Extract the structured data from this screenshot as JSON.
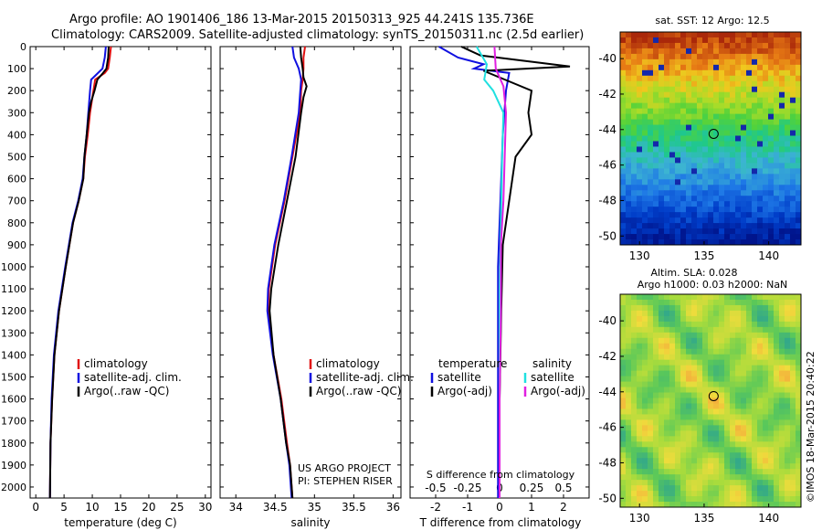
{
  "header": {
    "line1": "Argo profile: AO 1901406_186 13-Mar-2015 20150313_925 44.241S 135.736E",
    "line2": "Climatology: CARS2009. Satellite-adjusted climatology: synTS_20150311.nc (2.5d earlier)"
  },
  "colors": {
    "climatology": "#e01010",
    "satellite": "#1010e0",
    "argo": "#000000",
    "sat_salinity": "#20e0e0",
    "argo_salinity": "#e020e0"
  },
  "chart_data": [
    {
      "id": "temperature",
      "type": "line",
      "xlabel": "temperature (deg C)",
      "xlim": [
        -1,
        31
      ],
      "xticks": [
        0,
        5,
        10,
        15,
        20,
        25,
        30
      ],
      "ylim": [
        0,
        2050
      ],
      "yticks": [
        0,
        100,
        200,
        300,
        400,
        500,
        600,
        700,
        800,
        900,
        1000,
        1100,
        1200,
        1300,
        1400,
        1500,
        1600,
        1700,
        1800,
        1900,
        2000
      ],
      "y_reversed": true,
      "legend": [
        "climatology",
        "satellite-adj. clim.",
        "Argo(..raw -QC)"
      ],
      "series": [
        {
          "name": "climatology",
          "color": "#e01010",
          "x": [
            13.3,
            13.1,
            12.8,
            12.2,
            10.5,
            10.2,
            9.6,
            9.2,
            8.7,
            8.4,
            7.6,
            6.6,
            5.3,
            4.1,
            3.3,
            2.9,
            2.6,
            2.5
          ],
          "y": [
            0,
            50,
            100,
            120,
            150,
            200,
            300,
            400,
            500,
            600,
            700,
            800,
            1000,
            1200,
            1400,
            1600,
            1800,
            2050
          ]
        },
        {
          "name": "satellite-adj. clim.",
          "color": "#1010e0",
          "x": [
            12.4,
            12.2,
            11.8,
            11.0,
            9.8,
            9.6,
            9.3,
            9.0,
            8.6,
            8.3,
            7.5,
            6.5,
            5.2,
            4.0,
            3.2,
            2.8,
            2.6,
            2.5
          ],
          "y": [
            0,
            50,
            100,
            120,
            150,
            200,
            300,
            400,
            500,
            600,
            700,
            800,
            1000,
            1200,
            1400,
            1600,
            1800,
            2050
          ]
        },
        {
          "name": "Argo(..raw -QC)",
          "color": "#000000",
          "x": [
            12.9,
            12.8,
            12.5,
            11.9,
            10.9,
            10.4,
            9.8,
            9.4,
            9.0,
            8.6,
            8.4,
            7.6,
            6.6,
            5.3,
            4.1,
            3.3,
            2.9,
            2.6,
            2.5
          ],
          "y": [
            0,
            50,
            100,
            120,
            150,
            200,
            250,
            300,
            400,
            500,
            600,
            700,
            800,
            1000,
            1200,
            1400,
            1600,
            1800,
            2050
          ]
        }
      ]
    },
    {
      "id": "salinity",
      "type": "line",
      "xlabel": "salinity",
      "xlim": [
        33.8,
        36.1
      ],
      "xticks": [
        34,
        34.5,
        35,
        35.5,
        36
      ],
      "ylim": [
        0,
        2050
      ],
      "y_reversed": true,
      "legend": [
        "climatology",
        "satellite-adj. clim.",
        "Argo(..raw -QC)"
      ],
      "annotation": [
        "US ARGO PROJECT",
        "PI: STEPHEN RISER"
      ],
      "series": [
        {
          "name": "climatology",
          "color": "#e01010",
          "x": [
            34.88,
            34.86,
            34.86,
            34.85,
            34.83,
            34.82,
            34.72,
            34.62,
            34.5,
            34.42,
            34.41,
            34.48,
            34.58,
            34.65,
            34.69,
            34.72
          ],
          "y": [
            0,
            50,
            100,
            150,
            200,
            300,
            500,
            700,
            900,
            1100,
            1200,
            1400,
            1600,
            1800,
            1900,
            2050
          ]
        },
        {
          "name": "satellite-adj. clim.",
          "color": "#1010e0",
          "x": [
            34.72,
            34.74,
            34.8,
            34.83,
            34.82,
            34.8,
            34.71,
            34.61,
            34.49,
            34.41,
            34.4,
            34.47,
            34.57,
            34.64,
            34.68,
            34.71
          ],
          "y": [
            0,
            50,
            100,
            150,
            200,
            300,
            500,
            700,
            900,
            1100,
            1200,
            1400,
            1600,
            1800,
            1900,
            2050
          ]
        },
        {
          "name": "Argo(..raw -QC)",
          "color": "#000000",
          "x": [
            34.82,
            34.83,
            34.85,
            34.86,
            34.9,
            34.86,
            34.83,
            34.76,
            34.65,
            34.54,
            34.45,
            34.43,
            34.48,
            34.57,
            34.64,
            34.69,
            34.72
          ],
          "y": [
            0,
            50,
            100,
            140,
            180,
            230,
            300,
            500,
            700,
            900,
            1100,
            1200,
            1400,
            1600,
            1800,
            1900,
            2050
          ]
        }
      ]
    },
    {
      "id": "difference",
      "type": "line",
      "xlabel": "T difference from climatology",
      "top_label": "S difference from climatology",
      "xlim": [
        -2.8,
        2.8
      ],
      "xticks": [
        -2,
        -1,
        0,
        1,
        2
      ],
      "s_ticks": [
        -0.5,
        -0.25,
        0,
        0.25,
        0.5
      ],
      "s_tick_labels": [
        "-0.5",
        "-0.25",
        "0",
        "0.25",
        "0.5"
      ],
      "ylim": [
        0,
        2050
      ],
      "y_reversed": true,
      "legend_titles": [
        "temperature",
        "salinity"
      ],
      "legend": [
        "satellite",
        "Argo(-adj)",
        "satellite",
        "Argo(-adj)"
      ],
      "series": [
        {
          "name": "satellite",
          "group": "temperature",
          "color": "#1010e0",
          "x": [
            -1.9,
            -1.3,
            -0.5,
            -0.8,
            0.3,
            0.2,
            0.1,
            0.05,
            0.0,
            -0.05,
            -0.05,
            -0.05,
            -0.05
          ],
          "y": [
            0,
            50,
            80,
            100,
            120,
            200,
            400,
            600,
            800,
            1000,
            1400,
            1800,
            2050
          ]
        },
        {
          "name": "Argo(-adj)",
          "group": "temperature",
          "color": "#000000",
          "x": [
            -1.2,
            -0.6,
            2.2,
            -0.5,
            1.0,
            0.9,
            1.0,
            0.5,
            0.3,
            0.1,
            0.05,
            0.0,
            0.0
          ],
          "y": [
            0,
            40,
            90,
            110,
            200,
            300,
            400,
            500,
            700,
            900,
            1200,
            1600,
            2050
          ]
        },
        {
          "name": "satellite",
          "group": "salinity",
          "color": "#20e0e0",
          "x": [
            -0.18,
            -0.1,
            -0.12,
            -0.05,
            0.03,
            0.02,
            0.01,
            0.0,
            0.0,
            0.0,
            0.0
          ],
          "y": [
            0,
            80,
            150,
            200,
            300,
            500,
            800,
            1100,
            1400,
            1800,
            2050
          ]
        },
        {
          "name": "Argo(-adj)",
          "group": "salinity",
          "color": "#e020e0",
          "x": [
            -0.04,
            -0.03,
            0.03,
            0.05,
            0.04,
            0.03,
            0.01,
            0.01,
            0.0,
            0.0
          ],
          "y": [
            0,
            100,
            180,
            300,
            500,
            700,
            900,
            1200,
            1600,
            2050
          ]
        }
      ]
    },
    {
      "id": "sst_map",
      "type": "heatmap",
      "title": "sat. SST: 12 Argo: 12.5",
      "xlim": [
        128.5,
        142.5
      ],
      "ylim": [
        -50.5,
        -38.5
      ],
      "xticks": [
        130,
        135,
        140
      ],
      "yticks": [
        -40,
        -42,
        -44,
        -46,
        -48,
        -50
      ],
      "marker": {
        "lon": 135.736,
        "lat": -44.241
      }
    },
    {
      "id": "sla_map",
      "type": "heatmap",
      "title": "Altim. SLA: 0.028",
      "subtitle": "Argo h1000: 0.03 h2000: NaN",
      "xlim": [
        128.5,
        142.5
      ],
      "ylim": [
        -50.5,
        -38.5
      ],
      "xticks": [
        130,
        135,
        140
      ],
      "yticks": [
        -40,
        -42,
        -44,
        -46,
        -48,
        -50
      ],
      "marker": {
        "lon": 135.736,
        "lat": -44.241
      }
    }
  ],
  "footer": {
    "stamp": "©IMOS 18-Mar-2015 20:40:22"
  }
}
